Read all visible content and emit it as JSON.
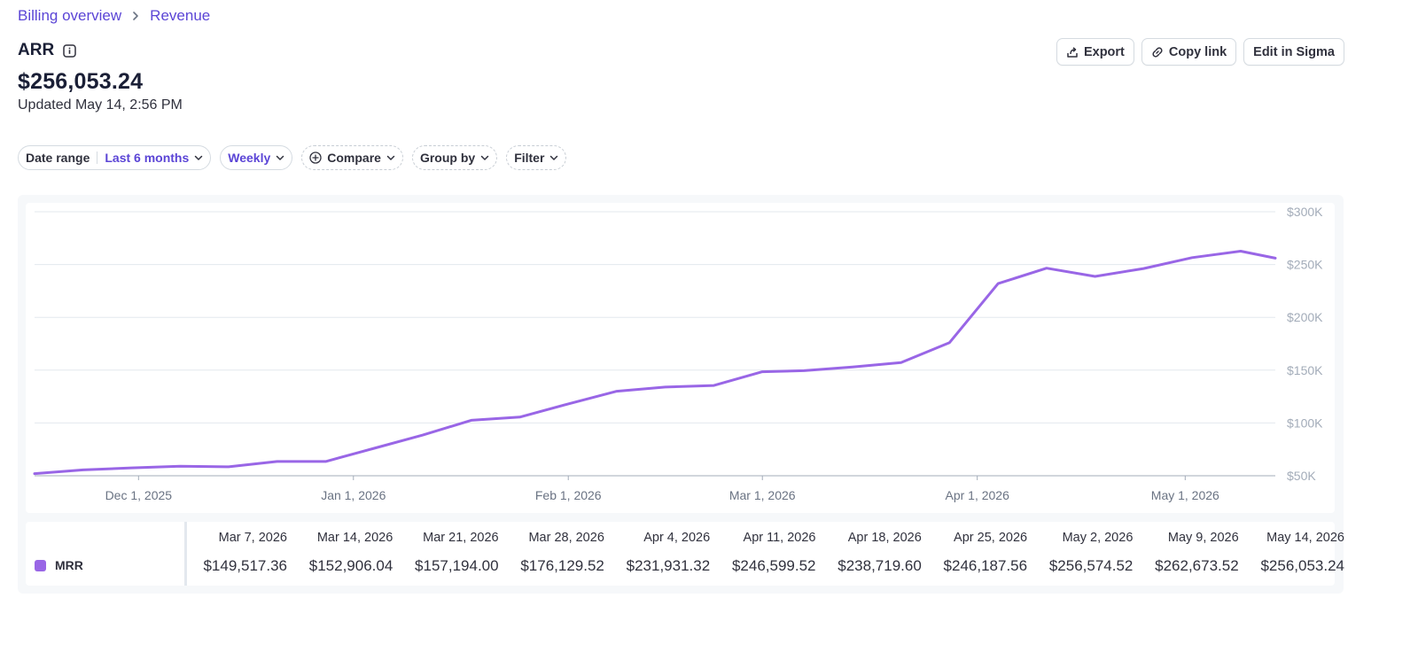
{
  "breadcrumb": {
    "parent": "Billing overview",
    "current": "Revenue"
  },
  "header": {
    "title": "ARR",
    "value": "$256,053.24",
    "updated": "Updated May 14, 2:56 PM"
  },
  "actions": {
    "export": "Export",
    "copy_link": "Copy link",
    "edit": "Edit in Sigma"
  },
  "filters": {
    "date_range_label": "Date range",
    "date_range_value": "Last 6 months",
    "interval": "Weekly",
    "compare": "Compare",
    "group_by": "Group by",
    "filter": "Filter"
  },
  "colors": {
    "accent": "#5b45d6",
    "series": "#9966e6"
  },
  "chart_data": {
    "type": "line",
    "y_ticks": [
      "$50K",
      "$100K",
      "$150K",
      "$200K",
      "$250K",
      "$300K"
    ],
    "ylim": [
      50000,
      300000
    ],
    "x_ticks": [
      "Dec 1, 2025",
      "Jan 1, 2026",
      "Feb 1, 2026",
      "Mar 1, 2026",
      "Apr 1, 2026",
      "May 1, 2026"
    ],
    "x_tick_dates": [
      "2025-12-01",
      "2026-01-01",
      "2026-02-01",
      "2026-03-01",
      "2026-04-01",
      "2026-05-01"
    ],
    "xlim": [
      "2025-11-16",
      "2026-05-14"
    ],
    "grid": true,
    "series": [
      {
        "name": "MRR",
        "points": [
          [
            "2025-11-16",
            52000
          ],
          [
            "2025-11-23",
            55500
          ],
          [
            "2025-11-30",
            57500
          ],
          [
            "2025-12-07",
            59000
          ],
          [
            "2025-12-14",
            58500
          ],
          [
            "2025-12-21",
            63500
          ],
          [
            "2025-12-28",
            63500
          ],
          [
            "2026-01-04",
            76000
          ],
          [
            "2026-01-11",
            88500
          ],
          [
            "2026-01-18",
            102500
          ],
          [
            "2026-01-25",
            105500
          ],
          [
            "2026-02-01",
            118000
          ],
          [
            "2026-02-08",
            130000
          ],
          [
            "2026-02-15",
            134000
          ],
          [
            "2026-02-22",
            135500
          ],
          [
            "2026-03-01",
            148500
          ],
          [
            "2026-03-07",
            149517.36
          ],
          [
            "2026-03-14",
            152906.04
          ],
          [
            "2026-03-21",
            157194.0
          ],
          [
            "2026-03-28",
            176129.52
          ],
          [
            "2026-04-04",
            231931.32
          ],
          [
            "2026-04-11",
            246599.52
          ],
          [
            "2026-04-18",
            238719.6
          ],
          [
            "2026-04-25",
            246187.56
          ],
          [
            "2026-05-02",
            256574.52
          ],
          [
            "2026-05-09",
            262673.52
          ],
          [
            "2026-05-14",
            256053.24
          ]
        ]
      }
    ]
  },
  "table": {
    "series_label": "MRR",
    "columns": [
      {
        "date": "Mar 7, 2026",
        "value": "$149,517.36"
      },
      {
        "date": "Mar 14, 2026",
        "value": "$152,906.04"
      },
      {
        "date": "Mar 21, 2026",
        "value": "$157,194.00"
      },
      {
        "date": "Mar 28, 2026",
        "value": "$176,129.52"
      },
      {
        "date": "Apr 4, 2026",
        "value": "$231,931.32"
      },
      {
        "date": "Apr 11, 2026",
        "value": "$246,599.52"
      },
      {
        "date": "Apr 18, 2026",
        "value": "$238,719.60"
      },
      {
        "date": "Apr 25, 2026",
        "value": "$246,187.56"
      },
      {
        "date": "May 2, 2026",
        "value": "$256,574.52"
      },
      {
        "date": "May 9, 2026",
        "value": "$262,673.52"
      },
      {
        "date": "May 14, 2026",
        "value": "$256,053.24"
      }
    ]
  }
}
